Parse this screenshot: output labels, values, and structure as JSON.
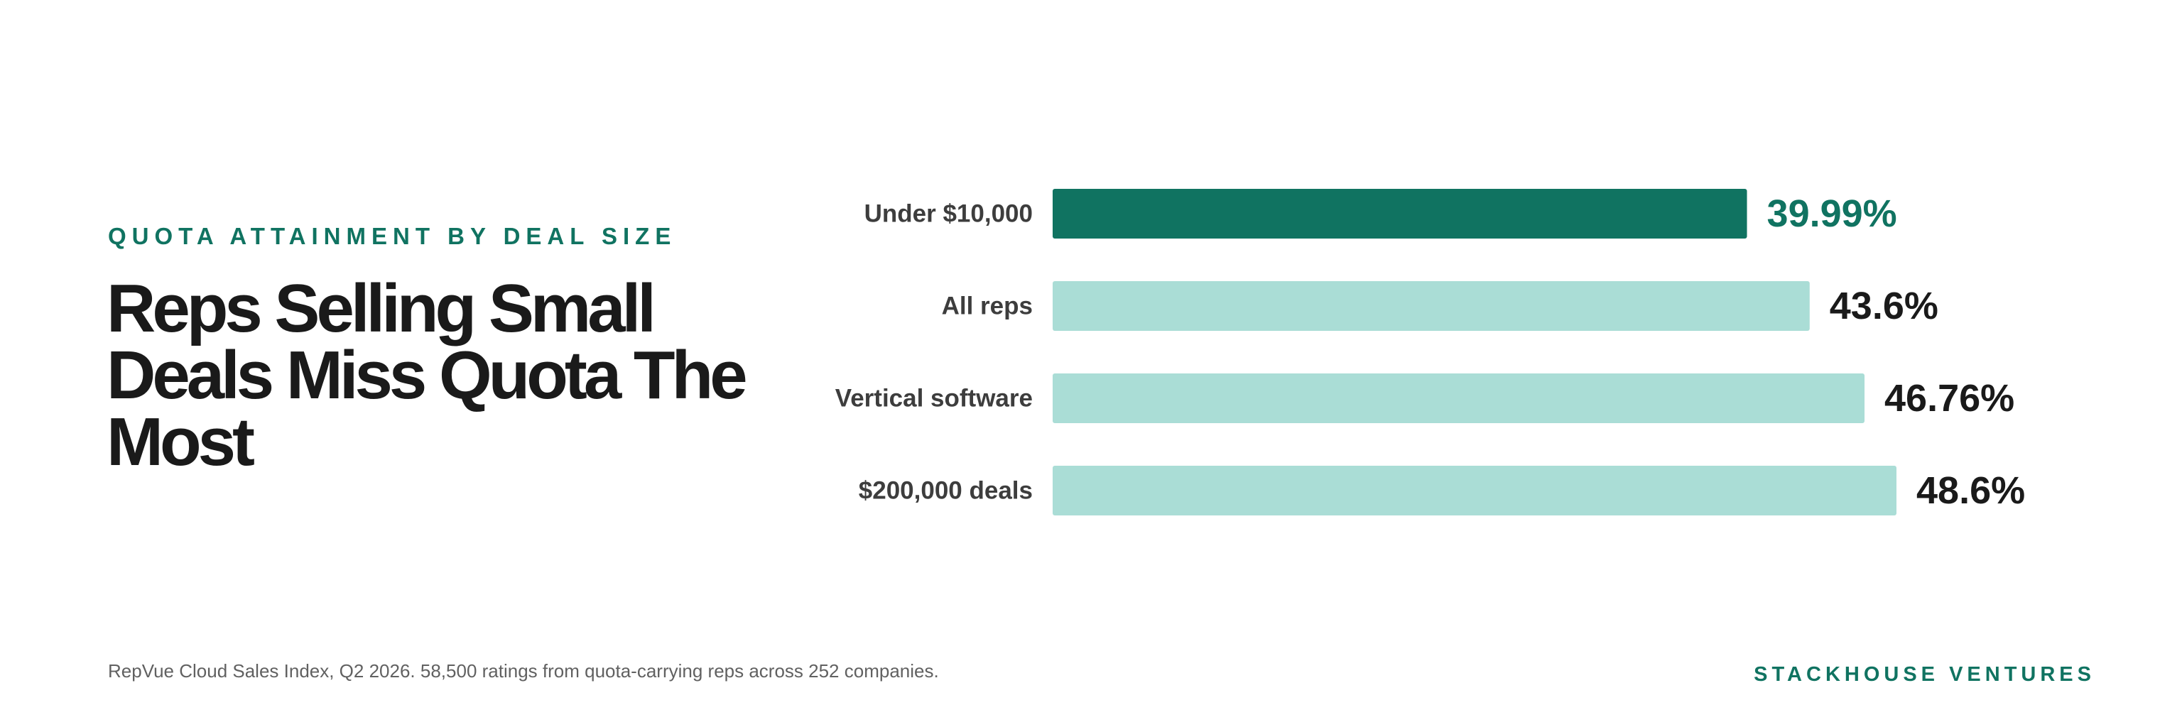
{
  "eyebrow": "QUOTA ATTAINMENT BY DEAL SIZE",
  "headline": "Reps Selling Small Deals Miss Quota The Most",
  "footnote": "RepVue Cloud Sales Index, Q2 2026. 58,500 ratings from quota-carrying reps across 252 companies.",
  "brand": "STACKHOUSE VENTURES",
  "colors": {
    "highlight": "#107361",
    "bar": "#aaddd6",
    "text": "#1a1a1a"
  },
  "chart_data": {
    "type": "bar",
    "orientation": "horizontal",
    "categories": [
      "Under $10,000",
      "All reps",
      "Vertical software",
      "$200,000 deals"
    ],
    "values": [
      39.99,
      43.6,
      46.76,
      48.6
    ],
    "value_labels": [
      "39.99%",
      "43.6%",
      "46.76%",
      "48.6%"
    ],
    "highlight_index": 0,
    "unit": "%",
    "xlim": [
      0,
      48.6
    ],
    "grid": false,
    "legend": "none"
  }
}
